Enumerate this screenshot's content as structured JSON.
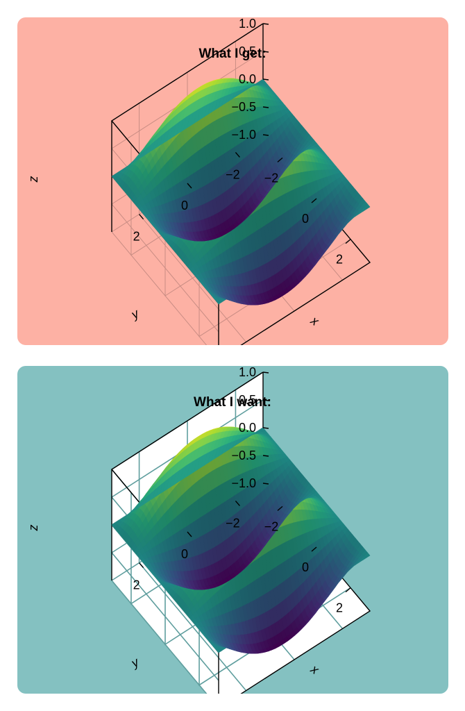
{
  "chart_data": [
    {
      "type": "surface",
      "title": "What I get:",
      "xlabel": "x",
      "ylabel": "y",
      "zlabel": "z",
      "xlim": [
        -3.14,
        3.14
      ],
      "ylim": [
        -3.14,
        3.14
      ],
      "zlim": [
        -1.0,
        1.0
      ],
      "xticks": [
        {
          "v": -2,
          "label": "−2"
        },
        {
          "v": 0,
          "label": "0"
        },
        {
          "v": 2,
          "label": "2"
        }
      ],
      "yticks": [
        {
          "v": 2,
          "label": "2"
        },
        {
          "v": 0,
          "label": "0"
        },
        {
          "v": -2,
          "label": "−2"
        }
      ],
      "zticks": [
        {
          "v": 1.0,
          "label": "1.0"
        },
        {
          "v": 0.5,
          "label": "0.5"
        },
        {
          "v": 0.0,
          "label": "0.0"
        },
        {
          "v": -0.5,
          "label": "−0.5"
        },
        {
          "v": -1.0,
          "label": "−1.0"
        }
      ],
      "function": "z = sin(2x) * cos(y / 2)",
      "colormap": "viridis",
      "grid": true,
      "panel_background": "#fdb1a4",
      "pane_fill": "#fdb1a4",
      "grid_color": "#c98d84"
    },
    {
      "type": "surface",
      "title": "What I want:",
      "xlabel": "x",
      "ylabel": "y",
      "zlabel": "z",
      "xlim": [
        -3.14,
        3.14
      ],
      "ylim": [
        -3.14,
        3.14
      ],
      "zlim": [
        -1.0,
        1.0
      ],
      "xticks": [
        {
          "v": -2,
          "label": "−2"
        },
        {
          "v": 0,
          "label": "0"
        },
        {
          "v": 2,
          "label": "2"
        }
      ],
      "yticks": [
        {
          "v": 2,
          "label": "2"
        },
        {
          "v": 0,
          "label": "0"
        },
        {
          "v": -2,
          "label": "−2"
        }
      ],
      "zticks": [
        {
          "v": 1.0,
          "label": "1.0"
        },
        {
          "v": 0.5,
          "label": "0.5"
        },
        {
          "v": 0.0,
          "label": "0.0"
        },
        {
          "v": -0.5,
          "label": "−0.5"
        },
        {
          "v": -1.0,
          "label": "−1.0"
        }
      ],
      "function": "z = sin(2x) * cos(y / 2)",
      "colormap": "viridis",
      "grid": true,
      "panel_background": "#84c1c1",
      "pane_fill": "#ffffff",
      "grid_color": "#5f9e9e"
    }
  ]
}
